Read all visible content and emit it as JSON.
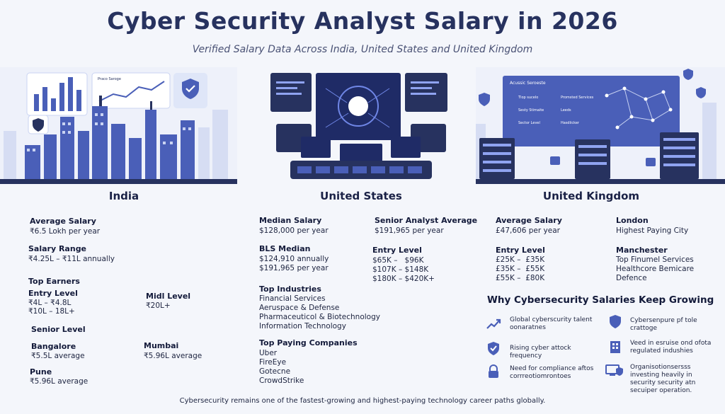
{
  "header": {
    "title": "Cyber Security Analyst Salary in 2026",
    "subtitle": "Verified Salary Data Across India, United States and United Kingdom"
  },
  "colors": {
    "accent": "#27325f",
    "illustration_blue": "#4a5fb8",
    "light_blue": "#c9d3f2"
  },
  "illustrations": {
    "india_card_label": "Praco Saroge",
    "uk_dashboard_title": "Acussic Seroeste",
    "uk_dashboard_items": [
      "Tlop sucelo",
      "Sesty Stimaite",
      "Sector Level",
      "Promsted Services",
      "Leeds",
      "Hasdiicker"
    ]
  },
  "india": {
    "name": "India",
    "average_salary": {
      "label": "Average Salary",
      "value": "₹6.5 Lokh per year"
    },
    "salary_range": {
      "label": "Salary Range",
      "value": "₹4.25L – ₹11L annually"
    },
    "top_earners_label": "Top Earners",
    "entry_level": {
      "label": "Entry Level",
      "lines": [
        "₹4L – ₹4.8L",
        "₹10L – 18L+"
      ]
    },
    "mid_level": {
      "label": "Midl Level",
      "value": "₹20L+"
    },
    "senior_level_label": "Senior Level",
    "bangalore": {
      "label": "Bangalore",
      "value": "₹5.5L average"
    },
    "mumbai": {
      "label": "Mumbai",
      "value": "₹5.96L average"
    },
    "pune": {
      "label": "Pune",
      "value": "₹5.96L average"
    }
  },
  "us": {
    "name": "United States",
    "median_salary": {
      "label": "Median Salary",
      "value": "$128,000 per year"
    },
    "senior_avg": {
      "label": "Senior Analyst Average",
      "value": "$191,965 per year"
    },
    "bls_median": {
      "label": "BLS Median",
      "lines": [
        "$124,910 annually",
        "$191,965 per year"
      ]
    },
    "entry_level": {
      "label": "Entry Level",
      "lines": [
        "$65K –   $96K",
        "$107K – $148K",
        "$180K – $420K+"
      ]
    },
    "top_industries": {
      "label": "Top Industries",
      "items": [
        "Financial Services",
        "Aeruspace & Defense",
        "Pharmaceuticol & Biotechnology",
        "Information Technology"
      ]
    },
    "top_companies": {
      "label": "Top Paying Companies",
      "items": [
        "Uber",
        "FireEye",
        "Gotecne",
        "CrowdStrike"
      ]
    }
  },
  "uk": {
    "name": "United Kingdom",
    "average_salary": {
      "label": "Average Salary",
      "value": "£47,606 per year"
    },
    "london": {
      "label": "London",
      "value": "Highest Paying City"
    },
    "entry_level": {
      "label": "Entry Level",
      "lines": [
        "£25K –  £35K",
        "£35K –  £55K",
        "£55K –  £80K"
      ]
    },
    "manchester": {
      "label": "Manchester",
      "lines": [
        "Top Finumel Services",
        "Healthcore Bemicare",
        "Defence"
      ]
    }
  },
  "why": {
    "title": "Why Cybersecurity Salaries Keep Growing",
    "reasons": [
      {
        "icon": "trend-up-icon",
        "text": "Global cyberscurity talent oonaratnes"
      },
      {
        "icon": "shield-icon",
        "text": "Cybersenpure pf tole crattoge"
      },
      {
        "icon": "shield-check-icon",
        "text": "Rising cyber attock frequency"
      },
      {
        "icon": "building-icon",
        "text": "Veed in esruise ond ofota regulated indushies"
      },
      {
        "icon": "lock-icon",
        "text": "Need for compliance aftos corrreotiomrontoes"
      },
      {
        "icon": "computer-shield-icon",
        "text": "Organisotionsersss investing heavily in security security atn secuiper operation."
      }
    ]
  },
  "footer": "Cybersecurity remains one of the fastest-growing and highest-paying technology career paths globally."
}
